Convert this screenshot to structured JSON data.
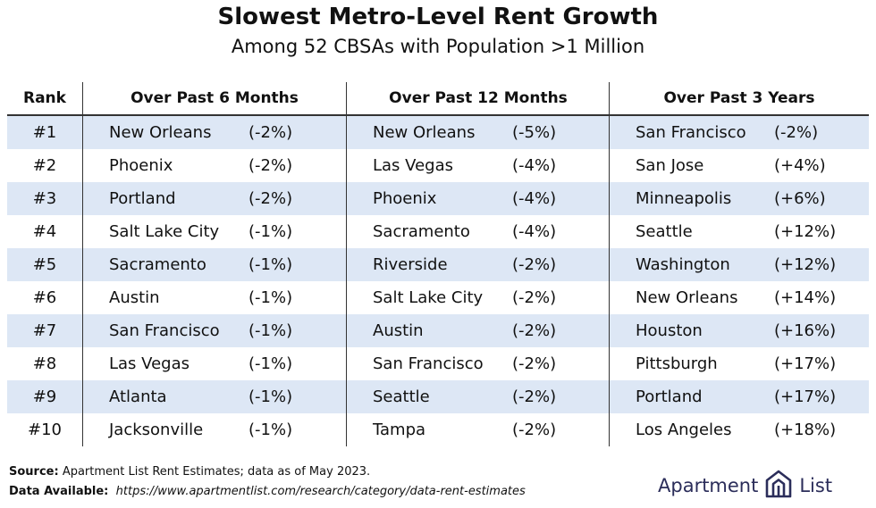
{
  "title": "Slowest Metro-Level Rent Growth",
  "subtitle": "Among 52 CBSAs with Population >1 Million",
  "colors": {
    "row_shade": "#dde7f5",
    "text": "#111111",
    "rule": "#333333",
    "logo": "#2b2d5a"
  },
  "chart_data": {
    "type": "table",
    "columns": [
      "Rank",
      "Over Past 6 Months",
      "Over Past 12 Months",
      "Over Past 3 Years"
    ],
    "rows": [
      {
        "rank": "#1",
        "m6_city": "New Orleans",
        "m6_val": "(-2%)",
        "m12_city": "New Orleans",
        "m12_val": "(-5%)",
        "y3_city": "San Francisco",
        "y3_val": "(-2%)"
      },
      {
        "rank": "#2",
        "m6_city": "Phoenix",
        "m6_val": "(-2%)",
        "m12_city": "Las Vegas",
        "m12_val": "(-4%)",
        "y3_city": "San Jose",
        "y3_val": "(+4%)"
      },
      {
        "rank": "#3",
        "m6_city": "Portland",
        "m6_val": "(-2%)",
        "m12_city": "Phoenix",
        "m12_val": "(-4%)",
        "y3_city": "Minneapolis",
        "y3_val": "(+6%)"
      },
      {
        "rank": "#4",
        "m6_city": "Salt Lake City",
        "m6_val": "(-1%)",
        "m12_city": "Sacramento",
        "m12_val": "(-4%)",
        "y3_city": "Seattle",
        "y3_val": "(+12%)"
      },
      {
        "rank": "#5",
        "m6_city": "Sacramento",
        "m6_val": "(-1%)",
        "m12_city": "Riverside",
        "m12_val": "(-2%)",
        "y3_city": "Washington",
        "y3_val": "(+12%)"
      },
      {
        "rank": "#6",
        "m6_city": "Austin",
        "m6_val": "(-1%)",
        "m12_city": "Salt Lake City",
        "m12_val": "(-2%)",
        "y3_city": "New Orleans",
        "y3_val": "(+14%)"
      },
      {
        "rank": "#7",
        "m6_city": "San Francisco",
        "m6_val": "(-1%)",
        "m12_city": "Austin",
        "m12_val": "(-2%)",
        "y3_city": "Houston",
        "y3_val": "(+16%)"
      },
      {
        "rank": "#8",
        "m6_city": "Las Vegas",
        "m6_val": "(-1%)",
        "m12_city": "San Francisco",
        "m12_val": "(-2%)",
        "y3_city": "Pittsburgh",
        "y3_val": "(+17%)"
      },
      {
        "rank": "#9",
        "m6_city": "Atlanta",
        "m6_val": "(-1%)",
        "m12_city": "Seattle",
        "m12_val": "(-2%)",
        "y3_city": "Portland",
        "y3_val": "(+17%)"
      },
      {
        "rank": "#10",
        "m6_city": "Jacksonville",
        "m6_val": "(-1%)",
        "m12_city": "Tampa",
        "m12_val": "(-2%)",
        "y3_city": "Los Angeles",
        "y3_val": "(+18%)"
      }
    ]
  },
  "footer": {
    "source_label": "Source:",
    "source_text": " Apartment List Rent Estimates; data as of May 2023.",
    "data_label": "Data Available:",
    "data_url": "https://www.apartmentlist.com/research/category/data-rent-estimates"
  },
  "logo": {
    "word1": "Apartment",
    "word2": "List",
    "icon": "apartment-list-logo-icon"
  }
}
